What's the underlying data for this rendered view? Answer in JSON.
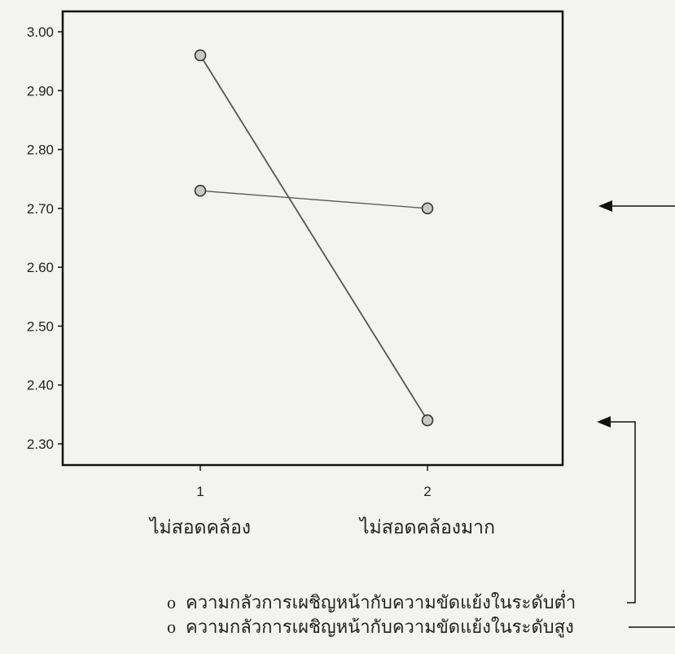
{
  "chart_data": {
    "type": "line",
    "x": [
      "1",
      "2"
    ],
    "x_category_labels": [
      "ไม่สอดคล้อง",
      "ไม่สอดคล้องมาก"
    ],
    "ylim": [
      2.3,
      3.0
    ],
    "y_ticks": [
      "2.30",
      "2.40",
      "2.50",
      "2.60",
      "2.70",
      "2.80",
      "2.90",
      "3.00"
    ],
    "grid": false,
    "series": [
      {
        "name": "ความกลัวการเผชิญหน้ากับความขัดแย้งในระดับต่ำ",
        "values": [
          2.96,
          2.34
        ]
      },
      {
        "name": "ความกลัวการเผชิญหน้ากับความขัดแย้งในระดับสูง",
        "values": [
          2.73,
          2.7
        ]
      }
    ],
    "legend_marker": "o",
    "legend_position": "bottom"
  },
  "colors": {
    "background": "#f3f3f1",
    "axis": "#111111",
    "line": "#555555",
    "marker_fill": "#c8c8c8"
  }
}
